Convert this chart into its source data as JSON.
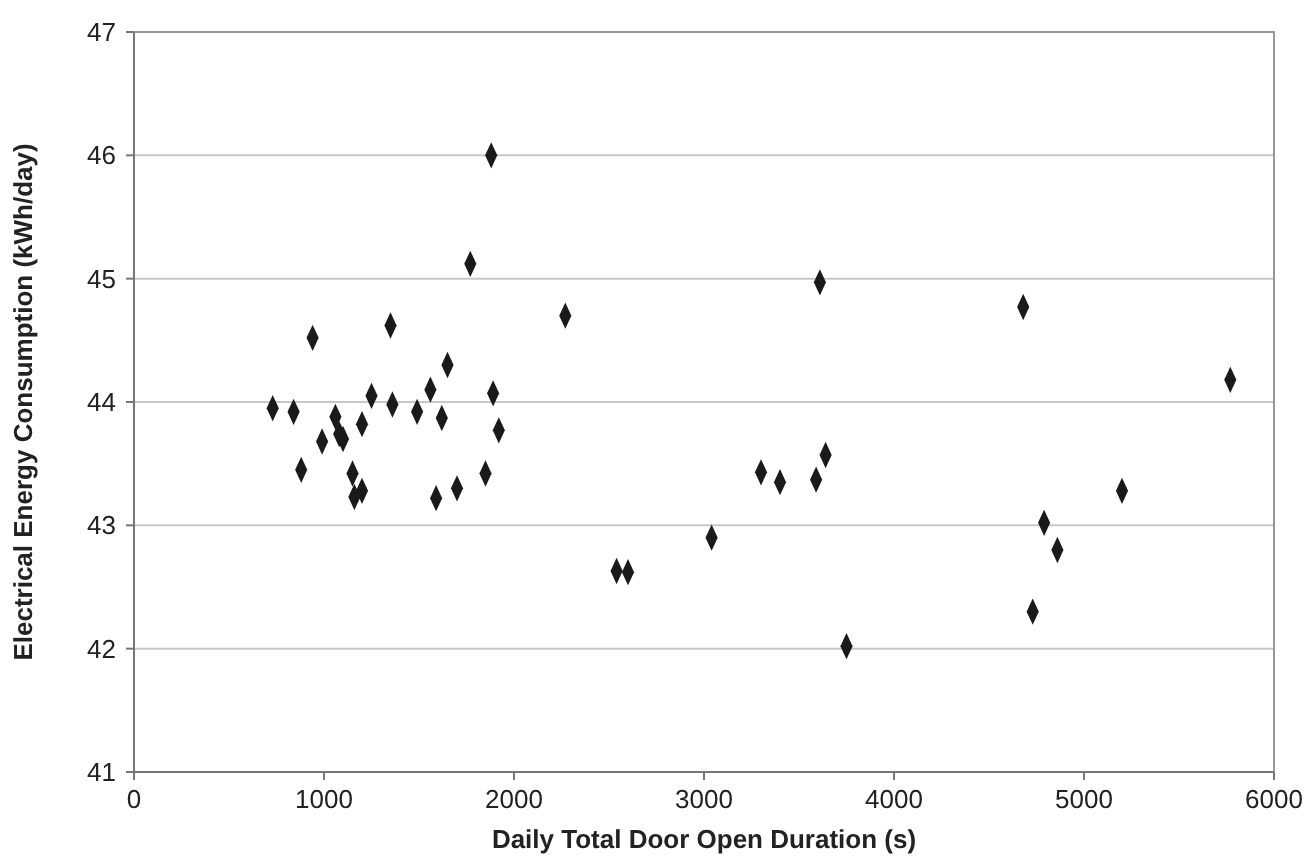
{
  "chart_data": {
    "type": "scatter",
    "xlabel": "Daily Total Door Open Duration (s)",
    "ylabel": "Electrical Energy Consumption (kWh/day)",
    "marker": "diamond",
    "grid": "y",
    "xlim": [
      0,
      6000
    ],
    "ylim": [
      41,
      47
    ],
    "xticks": [
      0,
      1000,
      2000,
      3000,
      4000,
      5000,
      6000
    ],
    "yticks": [
      41,
      42,
      43,
      44,
      45,
      46,
      47
    ],
    "series": [
      {
        "color": "#1a1a1a",
        "x": [
          730,
          840,
          880,
          940,
          990,
          1060,
          1080,
          1100,
          1150,
          1160,
          1200,
          1200,
          1250,
          1350,
          1360,
          1490,
          1560,
          1590,
          1620,
          1650,
          1700,
          1770,
          1850,
          1880,
          1890,
          1920,
          2270,
          2540,
          2600,
          3040,
          3300,
          3400,
          3590,
          3610,
          3640,
          3750,
          4680,
          4730,
          4790,
          4860,
          5200,
          5770
        ],
        "values": [
          43.95,
          43.92,
          43.45,
          44.52,
          43.68,
          43.88,
          43.74,
          43.7,
          43.42,
          43.23,
          43.28,
          43.82,
          44.05,
          44.62,
          43.98,
          43.92,
          44.1,
          43.22,
          43.87,
          44.3,
          43.3,
          45.12,
          43.42,
          46.0,
          44.07,
          43.77,
          44.7,
          42.63,
          42.62,
          42.9,
          43.43,
          43.35,
          43.37,
          44.97,
          43.57,
          42.02,
          44.77,
          42.3,
          43.02,
          42.8,
          43.28,
          44.18
        ]
      }
    ]
  }
}
